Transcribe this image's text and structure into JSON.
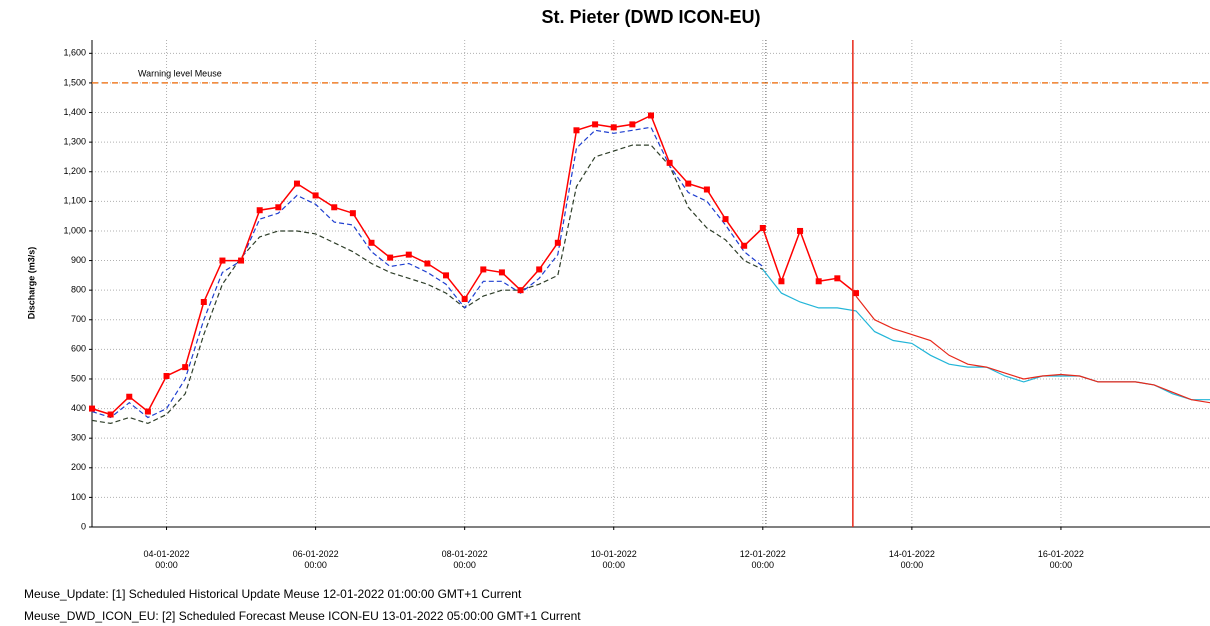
{
  "chart_data": {
    "type": "line",
    "title": "St. Pieter (DWD ICON-EU)",
    "y_label": "Discharge (m3/s)",
    "x": [
      "2022-01-03 00:00",
      "2022-01-03 06:00",
      "2022-01-03 12:00",
      "2022-01-03 18:00",
      "2022-01-04 00:00",
      "2022-01-04 06:00",
      "2022-01-04 12:00",
      "2022-01-04 18:00",
      "2022-01-05 00:00",
      "2022-01-05 06:00",
      "2022-01-05 12:00",
      "2022-01-05 18:00",
      "2022-01-06 00:00",
      "2022-01-06 06:00",
      "2022-01-06 12:00",
      "2022-01-06 18:00",
      "2022-01-07 00:00",
      "2022-01-07 06:00",
      "2022-01-07 12:00",
      "2022-01-07 18:00",
      "2022-01-08 00:00",
      "2022-01-08 06:00",
      "2022-01-08 12:00",
      "2022-01-08 18:00",
      "2022-01-09 00:00",
      "2022-01-09 06:00",
      "2022-01-09 12:00",
      "2022-01-09 18:00",
      "2022-01-10 00:00",
      "2022-01-10 06:00",
      "2022-01-10 12:00",
      "2022-01-10 18:00",
      "2022-01-11 00:00",
      "2022-01-11 06:00",
      "2022-01-11 12:00",
      "2022-01-11 18:00",
      "2022-01-12 00:00",
      "2022-01-12 06:00",
      "2022-01-12 12:00",
      "2022-01-12 18:00",
      "2022-01-13 00:00",
      "2022-01-13 06:00",
      "2022-01-13 12:00",
      "2022-01-13 18:00",
      "2022-01-14 00:00",
      "2022-01-14 06:00",
      "2022-01-14 12:00",
      "2022-01-14 18:00",
      "2022-01-15 00:00",
      "2022-01-15 06:00",
      "2022-01-15 12:00",
      "2022-01-15 18:00",
      "2022-01-16 00:00",
      "2022-01-16 06:00",
      "2022-01-16 12:00",
      "2022-01-16 18:00",
      "2022-01-17 00:00",
      "2022-01-17 06:00",
      "2022-01-17 12:00",
      "2022-01-17 18:00",
      "2022-01-18 00:00"
    ],
    "series": [
      {
        "color": "#ff0000",
        "marker": "square",
        "dash": "none",
        "values": [
          400,
          380,
          440,
          390,
          510,
          540,
          760,
          900,
          900,
          1070,
          1080,
          1160,
          1120,
          1080,
          1060,
          960,
          910,
          920,
          890,
          850,
          770,
          870,
          860,
          800,
          870,
          960,
          1340,
          1360,
          1350,
          1360,
          1390,
          1230,
          1160,
          1140,
          1040,
          950,
          1010,
          830,
          1000,
          830,
          840,
          790,
          null,
          null,
          null,
          null,
          null,
          null,
          null,
          null,
          null,
          null,
          null,
          null,
          null,
          null,
          null,
          null,
          null,
          null,
          null
        ]
      },
      {
        "color": "#1f3fd0",
        "marker": "none",
        "dash": "5,3",
        "values": [
          390,
          370,
          420,
          370,
          400,
          500,
          700,
          860,
          900,
          1040,
          1060,
          1120,
          1090,
          1030,
          1020,
          930,
          880,
          890,
          860,
          820,
          740,
          830,
          830,
          790,
          840,
          920,
          1280,
          1340,
          1330,
          1340,
          1350,
          1220,
          1130,
          1100,
          1020,
          930,
          880,
          null,
          null,
          null,
          null,
          null,
          null,
          null,
          null,
          null,
          null,
          null,
          null,
          null,
          null,
          null,
          null,
          null,
          null,
          null,
          null,
          null,
          null,
          null,
          null
        ]
      },
      {
        "color": "#2f3f2a",
        "marker": "none",
        "dash": "5,3",
        "values": [
          360,
          350,
          370,
          350,
          380,
          450,
          650,
          820,
          910,
          980,
          1000,
          1000,
          990,
          960,
          930,
          890,
          860,
          840,
          820,
          790,
          740,
          780,
          800,
          800,
          820,
          850,
          1150,
          1250,
          1270,
          1290,
          1290,
          1220,
          1080,
          1010,
          970,
          900,
          870,
          null,
          null,
          null,
          null,
          null,
          null,
          null,
          null,
          null,
          null,
          null,
          null,
          null,
          null,
          null,
          null,
          null,
          null,
          null,
          null,
          null,
          null,
          null,
          null
        ]
      },
      {
        "color": "#22b5d8",
        "marker": "none",
        "dash": "none",
        "values": [
          null,
          null,
          null,
          null,
          null,
          null,
          null,
          null,
          null,
          null,
          null,
          null,
          null,
          null,
          null,
          null,
          null,
          null,
          null,
          null,
          null,
          null,
          null,
          null,
          null,
          null,
          null,
          null,
          null,
          null,
          null,
          null,
          null,
          null,
          null,
          null,
          870,
          790,
          760,
          740,
          740,
          730,
          660,
          630,
          620,
          580,
          550,
          540,
          540,
          510,
          490,
          510,
          510,
          510,
          490,
          490,
          490,
          480,
          450,
          430,
          430
        ]
      },
      {
        "color": "#e8281a",
        "marker": "none",
        "dash": "none",
        "values": [
          null,
          null,
          null,
          null,
          null,
          null,
          null,
          null,
          null,
          null,
          null,
          null,
          null,
          null,
          null,
          null,
          null,
          null,
          null,
          null,
          null,
          null,
          null,
          null,
          null,
          null,
          null,
          null,
          null,
          null,
          null,
          null,
          null,
          null,
          null,
          null,
          null,
          null,
          null,
          null,
          null,
          780,
          700,
          670,
          650,
          630,
          580,
          550,
          540,
          520,
          500,
          510,
          515,
          510,
          490,
          490,
          490,
          480,
          455,
          430,
          420
        ]
      }
    ],
    "xlim": [
      "2022-01-03 00:00",
      "2022-01-18 00:00"
    ],
    "xticks": [
      {
        "value": "2022-01-04 00:00",
        "label": "04-01-2022\n00:00"
      },
      {
        "value": "2022-01-06 00:00",
        "label": "06-01-2022\n00:00"
      },
      {
        "value": "2022-01-08 00:00",
        "label": "08-01-2022\n00:00"
      },
      {
        "value": "2022-01-10 00:00",
        "label": "10-01-2022\n00:00"
      },
      {
        "value": "2022-01-12 00:00",
        "label": "12-01-2022\n00:00"
      },
      {
        "value": "2022-01-14 00:00",
        "label": "14-01-2022\n00:00"
      },
      {
        "value": "2022-01-16 00:00",
        "label": "16-01-2022\n00:00"
      }
    ],
    "ylim": [
      0,
      1645
    ],
    "yticks": [
      0,
      100,
      200,
      300,
      400,
      500,
      600,
      700,
      800,
      900,
      {
        "value": 1000,
        "label": "1,000"
      },
      {
        "value": 1100,
        "label": "1,100"
      },
      {
        "value": 1200,
        "label": "1,200"
      },
      {
        "value": 1300,
        "label": "1,300"
      },
      {
        "value": 1400,
        "label": "1,400"
      },
      {
        "value": 1500,
        "label": "1,500"
      },
      {
        "value": 1600,
        "label": "1,600"
      }
    ],
    "grid": true,
    "warning_level": 1500,
    "warning_label": "Warning level Meuse",
    "warning_color": "#f07f2a",
    "update_time": "2022-01-12 01:00",
    "forecast_time": "2022-01-13 05:00",
    "forecast_color": "#e8281a"
  },
  "footer": [
    "Meuse_Update: [1] Scheduled Historical Update Meuse 12-01-2022 01:00:00 GMT+1 Current",
    "Meuse_DWD_ICON_EU: [2] Scheduled Forecast Meuse ICON-EU 13-01-2022 05:00:00 GMT+1 Current"
  ]
}
